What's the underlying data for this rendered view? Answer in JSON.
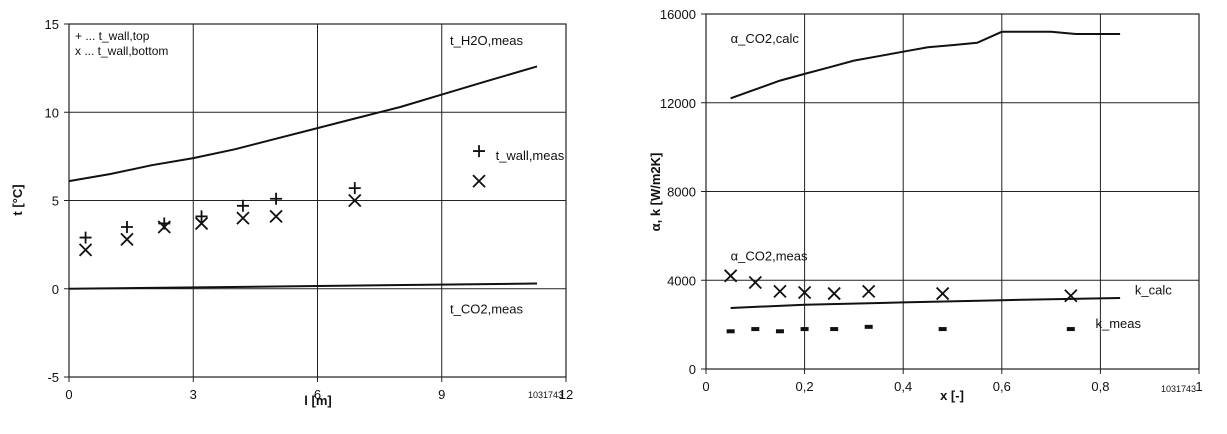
{
  "chart_data": [
    {
      "type": "line",
      "xlabel": "l [m]",
      "ylabel": "t [°C]",
      "xlim": [
        0,
        12
      ],
      "ylim": [
        -5,
        15
      ],
      "x_ticks": [
        0,
        3,
        6,
        9,
        12
      ],
      "y_ticks": [
        -5,
        0,
        5,
        10,
        15
      ],
      "x_tick_labels": [
        "0",
        "3",
        "6",
        "9",
        "12"
      ],
      "y_tick_labels": [
        "-5",
        "0",
        "5",
        "10",
        "15"
      ],
      "grid": "major",
      "ref_label": "1031743",
      "legend": {
        "placement": "top-left",
        "entries": [
          {
            "symbol": "+",
            "text": "+ ... t_wall,top"
          },
          {
            "symbol": "x",
            "text": "x ... t_wall,bottom"
          }
        ]
      },
      "series": [
        {
          "name": "t_H2O,meas",
          "kind": "line",
          "x": [
            0,
            1,
            2,
            3,
            4,
            5,
            6,
            7,
            8,
            9,
            10,
            11.3
          ],
          "y": [
            6.1,
            6.5,
            7.0,
            7.4,
            7.9,
            8.5,
            9.1,
            9.7,
            10.3,
            11.0,
            11.7,
            12.6
          ]
        },
        {
          "name": "t_CO2,meas",
          "kind": "line",
          "x": [
            0,
            11.3
          ],
          "y": [
            0.0,
            0.3
          ]
        },
        {
          "name": "t_wall,top",
          "kind": "marker",
          "marker": "+",
          "x": [
            0.4,
            1.4,
            2.3,
            3.2,
            4.2,
            5.0,
            6.9,
            9.9
          ],
          "y": [
            2.9,
            3.5,
            3.7,
            4.1,
            4.7,
            5.1,
            5.7,
            7.8
          ]
        },
        {
          "name": "t_wall,bottom",
          "kind": "marker",
          "marker": "x",
          "x": [
            0.4,
            1.4,
            2.3,
            3.2,
            4.2,
            5.0,
            6.9,
            9.9
          ],
          "y": [
            2.2,
            2.8,
            3.5,
            3.7,
            4.0,
            4.1,
            5.0,
            6.1
          ]
        }
      ],
      "annotations": [
        {
          "text": "t_H2O,meas",
          "x": 9.2,
          "y": 13.8
        },
        {
          "text": "t_wall,meas",
          "x": 10.3,
          "y": 7.3
        },
        {
          "text": "t_CO2,meas",
          "x": 9.2,
          "y": -1.4
        }
      ]
    },
    {
      "type": "line",
      "xlabel": "x [-]",
      "ylabel": "α, k [W/m2K]",
      "xlim": [
        0,
        1
      ],
      "ylim": [
        0,
        16000
      ],
      "x_ticks": [
        0,
        0.2,
        0.4,
        0.6,
        0.8,
        1
      ],
      "y_ticks": [
        0,
        4000,
        8000,
        12000,
        16000
      ],
      "x_tick_labels": [
        "0",
        "0,2",
        "0,4",
        "0,6",
        "0,8",
        "1"
      ],
      "y_tick_labels": [
        "0",
        "4000",
        "8000",
        "12000",
        "16000"
      ],
      "grid": "major",
      "ref_label": "1031743",
      "series": [
        {
          "name": "α_CO2,calc",
          "kind": "line",
          "x": [
            0.05,
            0.1,
            0.15,
            0.2,
            0.25,
            0.3,
            0.35,
            0.4,
            0.45,
            0.5,
            0.55,
            0.6,
            0.65,
            0.7,
            0.75,
            0.84
          ],
          "y": [
            12200,
            12600,
            13000,
            13300,
            13600,
            13900,
            14100,
            14300,
            14500,
            14600,
            14700,
            15200,
            15200,
            15200,
            15100,
            15100
          ]
        },
        {
          "name": "k_calc",
          "kind": "line",
          "x": [
            0.05,
            0.2,
            0.4,
            0.6,
            0.84
          ],
          "y": [
            2750,
            2900,
            3000,
            3100,
            3200
          ]
        },
        {
          "name": "α_CO2,meas",
          "kind": "marker",
          "marker": "x",
          "x": [
            0.05,
            0.1,
            0.15,
            0.2,
            0.26,
            0.33,
            0.48,
            0.74
          ],
          "y": [
            4200,
            3900,
            3500,
            3450,
            3400,
            3500,
            3400,
            3300
          ]
        },
        {
          "name": "k_meas",
          "kind": "marker",
          "marker": "-",
          "x": [
            0.05,
            0.1,
            0.15,
            0.2,
            0.26,
            0.33,
            0.48,
            0.74
          ],
          "y": [
            1700,
            1800,
            1700,
            1800,
            1800,
            1900,
            1800,
            1800
          ]
        }
      ],
      "annotations": [
        {
          "text": "α_CO2,calc",
          "x": 0.05,
          "y": 14700
        },
        {
          "text": "α_CO2,meas",
          "x": 0.05,
          "y": 4900
        },
        {
          "text": "k_calc",
          "x": 0.87,
          "y": 3350
        },
        {
          "text": "k_meas",
          "x": 0.79,
          "y": 1850
        }
      ]
    }
  ]
}
